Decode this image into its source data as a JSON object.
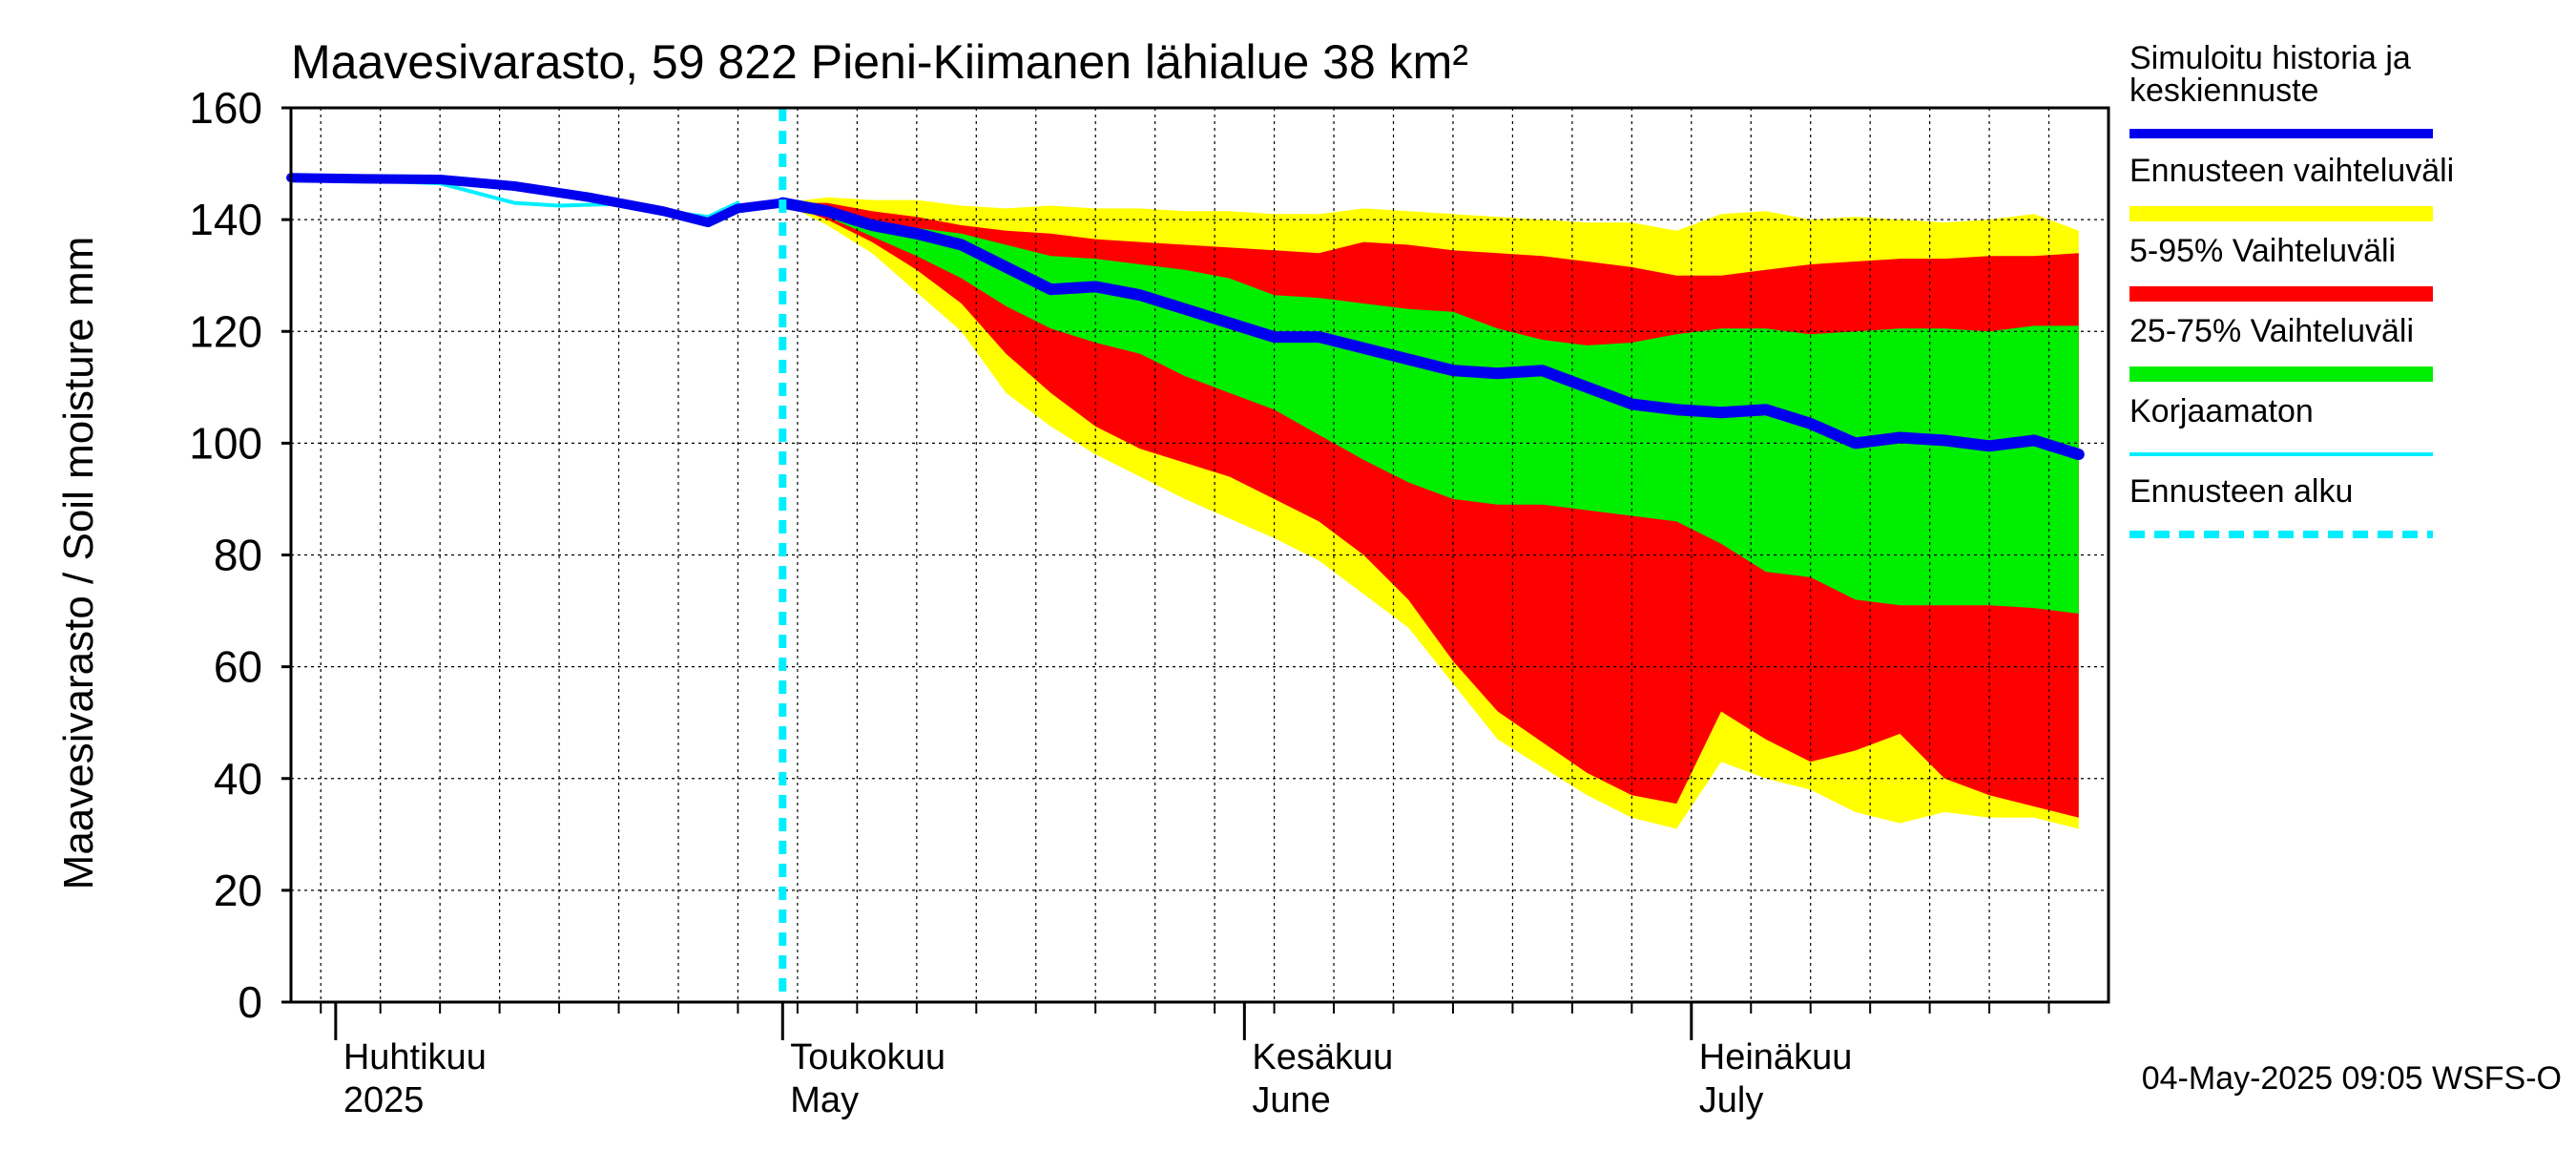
{
  "chart_data": {
    "type": "area",
    "title": "Maavesivarasto, 59 822 Pieni-Kiimanen lähialue 38 km²",
    "ylabel": "Maavesivarasto / Soil moisture   mm",
    "ylim": [
      0,
      160
    ],
    "yticks": [
      0,
      20,
      40,
      60,
      80,
      100,
      120,
      140,
      160
    ],
    "x_start_date": "2025-03-29",
    "x_end_date": "2025-07-31",
    "forecast_start_day": 33,
    "month_starts": [
      {
        "day": 3,
        "label_fi": "Huhtikuu",
        "label_en": "2025"
      },
      {
        "day": 33,
        "label_fi": "Toukokuu",
        "label_en": "May"
      },
      {
        "day": 64,
        "label_fi": "Kesäkuu",
        "label_en": "June"
      },
      {
        "day": 94,
        "label_fi": "Heinäkuu",
        "label_en": "July"
      }
    ],
    "legend": [
      {
        "label": "Simuloitu historia ja",
        "label2": "keskiennuste",
        "color": "#0000ee",
        "style": "thick"
      },
      {
        "label": "Ennusteen vaihteluväli",
        "color": "#ffff00",
        "style": "band"
      },
      {
        "label": "5-95% Vaihteluväli",
        "color": "#ff0000",
        "style": "band"
      },
      {
        "label": "25-75% Vaihteluväli",
        "color": "#00ee00",
        "style": "band"
      },
      {
        "label": "Korjaamaton",
        "color": "#00eeff",
        "style": "thin"
      },
      {
        "label": "Ennusteen alku",
        "color": "#00eeff",
        "style": "dashed"
      }
    ],
    "footer": "04-May-2025 09:05 WSFS-O",
    "series": {
      "history": {
        "name": "Simuloitu historia ja keskiennuste",
        "days": [
          0,
          5,
          10,
          15,
          20,
          25,
          28,
          30,
          33
        ],
        "values": [
          147.5,
          147.3,
          147.2,
          146,
          144,
          141.5,
          139.5,
          142,
          143
        ]
      },
      "uncorrected": {
        "name": "Korjaamaton",
        "days": [
          0,
          5,
          10,
          15,
          18,
          22,
          25,
          28,
          30
        ],
        "values": [
          147.5,
          147,
          146.5,
          143,
          142.5,
          142.8,
          141.5,
          140.5,
          143
        ]
      },
      "median": {
        "name": "keskiennuste",
        "days": [
          33,
          36,
          39,
          42,
          45,
          48,
          51,
          54,
          57,
          60,
          63,
          66,
          69,
          72,
          75,
          78,
          81,
          84,
          87,
          90,
          93,
          96,
          99,
          102,
          105,
          108,
          111,
          114,
          117,
          120
        ],
        "values": [
          143,
          141.5,
          139,
          137.5,
          135.5,
          131.5,
          127.5,
          128,
          126.5,
          124,
          121.5,
          119,
          119,
          117,
          115,
          113,
          112.5,
          113,
          110,
          107,
          106,
          105.5,
          106,
          103.5,
          100,
          101,
          100.5,
          99.5,
          100.5,
          98
        ]
      },
      "p25": {
        "name": "25%",
        "days": [
          33,
          36,
          39,
          42,
          45,
          48,
          51,
          54,
          57,
          60,
          63,
          66,
          69,
          72,
          75,
          78,
          81,
          84,
          87,
          90,
          93,
          96,
          99,
          102,
          105,
          108,
          111,
          114,
          117,
          120
        ],
        "values": [
          143,
          140.5,
          137,
          133.5,
          129.5,
          124.5,
          120.5,
          118,
          116,
          112,
          109,
          106,
          101.5,
          97,
          93,
          90,
          89,
          89,
          88,
          87,
          86,
          82,
          77,
          76,
          72,
          71,
          71,
          71,
          70.5,
          69.5
        ]
      },
      "p75": {
        "name": "75%",
        "days": [
          33,
          36,
          39,
          42,
          45,
          48,
          51,
          54,
          57,
          60,
          63,
          66,
          69,
          72,
          75,
          78,
          81,
          84,
          87,
          90,
          93,
          96,
          99,
          102,
          105,
          108,
          111,
          114,
          117,
          120
        ],
        "values": [
          143,
          142,
          140,
          138.5,
          137.5,
          135.5,
          133.5,
          133,
          132,
          131,
          129.5,
          126.5,
          126,
          125,
          124,
          123.5,
          120.5,
          118.5,
          117.5,
          118,
          119.5,
          120.5,
          120.5,
          119.5,
          120,
          120.5,
          120.5,
          120,
          121,
          121
        ]
      },
      "p5": {
        "name": "5%",
        "days": [
          33,
          36,
          39,
          42,
          45,
          48,
          51,
          54,
          57,
          60,
          63,
          66,
          69,
          72,
          75,
          78,
          81,
          84,
          87,
          90,
          93,
          96,
          99,
          102,
          105,
          108,
          111,
          114,
          117,
          120
        ],
        "values": [
          143,
          140,
          136,
          131,
          125,
          116,
          109,
          103,
          99,
          96.5,
          94,
          90,
          86,
          80,
          72,
          61,
          52,
          46.5,
          41,
          37,
          35.5,
          52,
          47,
          43,
          45,
          48,
          40,
          37,
          35,
          33
        ]
      },
      "p95": {
        "name": "95%",
        "days": [
          33,
          36,
          39,
          42,
          45,
          48,
          51,
          54,
          57,
          60,
          63,
          66,
          69,
          72,
          75,
          78,
          81,
          84,
          87,
          90,
          93,
          96,
          99,
          102,
          105,
          108,
          111,
          114,
          117,
          120
        ],
        "values": [
          143,
          143,
          141.5,
          140.5,
          139,
          138,
          137.5,
          136.5,
          136,
          135.5,
          135,
          134.5,
          134,
          136,
          135.5,
          134.5,
          134,
          133.5,
          132.5,
          131.5,
          130,
          130,
          131,
          132,
          132.5,
          133,
          133,
          133.5,
          133.5,
          134
        ]
      },
      "min": {
        "name": "Ennusteen vaihteluväli (min)",
        "days": [
          33,
          36,
          39,
          42,
          45,
          48,
          51,
          54,
          57,
          60,
          63,
          66,
          69,
          72,
          75,
          78,
          81,
          84,
          87,
          90,
          93,
          96,
          99,
          102,
          105,
          108,
          111,
          114,
          117,
          120
        ],
        "values": [
          143,
          139,
          134,
          127,
          120,
          109,
          103,
          98,
          94,
          90,
          86.5,
          83,
          79,
          73,
          67,
          57,
          47,
          42,
          37,
          33,
          31,
          43,
          40,
          38,
          34,
          32,
          34,
          33,
          33,
          31
        ]
      },
      "max": {
        "name": "Ennusteen vaihteluväli (max)",
        "days": [
          33,
          36,
          39,
          42,
          45,
          48,
          51,
          54,
          57,
          60,
          63,
          66,
          69,
          72,
          75,
          78,
          81,
          84,
          87,
          90,
          93,
          96,
          99,
          102,
          105,
          108,
          111,
          114,
          117,
          120
        ],
        "values": [
          143,
          144,
          143.5,
          143.5,
          142.5,
          142,
          142.5,
          142,
          142,
          141.5,
          141.5,
          141,
          141,
          142,
          141.5,
          141,
          140.5,
          140,
          139.5,
          139.5,
          138,
          141,
          141.5,
          140,
          140.5,
          140,
          139.5,
          140,
          141,
          138
        ]
      }
    }
  }
}
